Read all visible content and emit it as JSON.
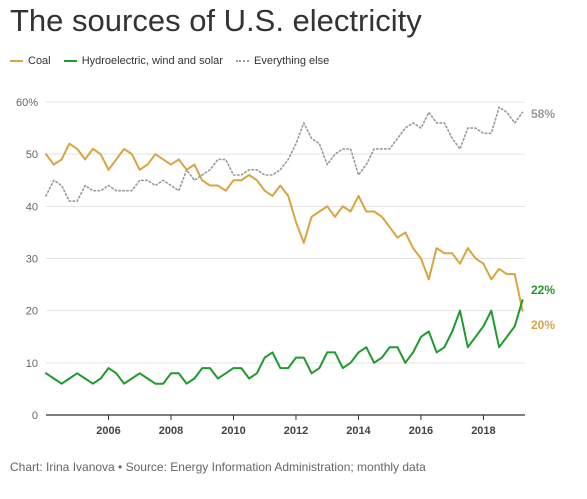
{
  "title": "The sources of U.S. electricity",
  "source": "Chart: Irina Ivanova • Source: Energy Information Administration; monthly data",
  "legend": [
    {
      "label": "Coal",
      "color": "#d9a441",
      "dash": "solid"
    },
    {
      "label": "Hydroelectric, wind and solar",
      "color": "#1f9a2c",
      "dash": "solid"
    },
    {
      "label": "Everything else",
      "color": "#999999",
      "dash": "dotted"
    }
  ],
  "chart_data": {
    "type": "line",
    "title": "The sources of U.S. electricity",
    "xlabel": "",
    "ylabel": "",
    "xlim": [
      2004.0,
      2019.33
    ],
    "ylim": [
      0,
      60
    ],
    "y_ticks": [
      0,
      10,
      20,
      30,
      40,
      50,
      60
    ],
    "y_tick_labels": [
      "0",
      "10",
      "20",
      "30",
      "40",
      "50",
      "60%"
    ],
    "x_ticks": [
      2006,
      2008,
      2010,
      2012,
      2014,
      2016,
      2018
    ],
    "x_tick_labels": [
      "2006",
      "2008",
      "2010",
      "2012",
      "2014",
      "2016",
      "2018"
    ],
    "grid": "horizontal",
    "legend_position": "top-left",
    "series": [
      {
        "name": "Coal",
        "color": "#d9a441",
        "dash": "solid",
        "end_label": "20%",
        "points": [
          [
            2004.0,
            50
          ],
          [
            2004.25,
            48
          ],
          [
            2004.5,
            49
          ],
          [
            2004.75,
            52
          ],
          [
            2005.0,
            51
          ],
          [
            2005.25,
            49
          ],
          [
            2005.5,
            51
          ],
          [
            2005.75,
            50
          ],
          [
            2006.0,
            47
          ],
          [
            2006.25,
            49
          ],
          [
            2006.5,
            51
          ],
          [
            2006.75,
            50
          ],
          [
            2007.0,
            47
          ],
          [
            2007.25,
            48
          ],
          [
            2007.5,
            50
          ],
          [
            2007.75,
            49
          ],
          [
            2008.0,
            48
          ],
          [
            2008.25,
            49
          ],
          [
            2008.5,
            47
          ],
          [
            2008.75,
            48
          ],
          [
            2009.0,
            45
          ],
          [
            2009.25,
            44
          ],
          [
            2009.5,
            44
          ],
          [
            2009.75,
            43
          ],
          [
            2010.0,
            45
          ],
          [
            2010.25,
            45
          ],
          [
            2010.5,
            46
          ],
          [
            2010.75,
            45
          ],
          [
            2011.0,
            43
          ],
          [
            2011.25,
            42
          ],
          [
            2011.5,
            44
          ],
          [
            2011.75,
            42
          ],
          [
            2012.0,
            37
          ],
          [
            2012.25,
            33
          ],
          [
            2012.5,
            38
          ],
          [
            2012.75,
            39
          ],
          [
            2013.0,
            40
          ],
          [
            2013.25,
            38
          ],
          [
            2013.5,
            40
          ],
          [
            2013.75,
            39
          ],
          [
            2014.0,
            42
          ],
          [
            2014.25,
            39
          ],
          [
            2014.5,
            39
          ],
          [
            2014.75,
            38
          ],
          [
            2015.0,
            36
          ],
          [
            2015.25,
            34
          ],
          [
            2015.5,
            35
          ],
          [
            2015.75,
            32
          ],
          [
            2016.0,
            30
          ],
          [
            2016.25,
            26
          ],
          [
            2016.5,
            32
          ],
          [
            2016.75,
            31
          ],
          [
            2017.0,
            31
          ],
          [
            2017.25,
            29
          ],
          [
            2017.5,
            32
          ],
          [
            2017.75,
            30
          ],
          [
            2018.0,
            29
          ],
          [
            2018.25,
            26
          ],
          [
            2018.5,
            28
          ],
          [
            2018.75,
            27
          ],
          [
            2019.0,
            27
          ],
          [
            2019.25,
            20
          ]
        ]
      },
      {
        "name": "Hydroelectric, wind and solar",
        "color": "#1f9a2c",
        "dash": "solid",
        "end_label": "22%",
        "points": [
          [
            2004.0,
            8
          ],
          [
            2004.25,
            7
          ],
          [
            2004.5,
            6
          ],
          [
            2004.75,
            7
          ],
          [
            2005.0,
            8
          ],
          [
            2005.25,
            7
          ],
          [
            2005.5,
            6
          ],
          [
            2005.75,
            7
          ],
          [
            2006.0,
            9
          ],
          [
            2006.25,
            8
          ],
          [
            2006.5,
            6
          ],
          [
            2006.75,
            7
          ],
          [
            2007.0,
            8
          ],
          [
            2007.25,
            7
          ],
          [
            2007.5,
            6
          ],
          [
            2007.75,
            6
          ],
          [
            2008.0,
            8
          ],
          [
            2008.25,
            8
          ],
          [
            2008.5,
            6
          ],
          [
            2008.75,
            7
          ],
          [
            2009.0,
            9
          ],
          [
            2009.25,
            9
          ],
          [
            2009.5,
            7
          ],
          [
            2009.75,
            8
          ],
          [
            2010.0,
            9
          ],
          [
            2010.25,
            9
          ],
          [
            2010.5,
            7
          ],
          [
            2010.75,
            8
          ],
          [
            2011.0,
            11
          ],
          [
            2011.25,
            12
          ],
          [
            2011.5,
            9
          ],
          [
            2011.75,
            9
          ],
          [
            2012.0,
            11
          ],
          [
            2012.25,
            11
          ],
          [
            2012.5,
            8
          ],
          [
            2012.75,
            9
          ],
          [
            2013.0,
            12
          ],
          [
            2013.25,
            12
          ],
          [
            2013.5,
            9
          ],
          [
            2013.75,
            10
          ],
          [
            2014.0,
            12
          ],
          [
            2014.25,
            13
          ],
          [
            2014.5,
            10
          ],
          [
            2014.75,
            11
          ],
          [
            2015.0,
            13
          ],
          [
            2015.25,
            13
          ],
          [
            2015.5,
            10
          ],
          [
            2015.75,
            12
          ],
          [
            2016.0,
            15
          ],
          [
            2016.25,
            16
          ],
          [
            2016.5,
            12
          ],
          [
            2016.75,
            13
          ],
          [
            2017.0,
            16
          ],
          [
            2017.25,
            20
          ],
          [
            2017.5,
            13
          ],
          [
            2017.75,
            15
          ],
          [
            2018.0,
            17
          ],
          [
            2018.25,
            20
          ],
          [
            2018.5,
            13
          ],
          [
            2018.75,
            15
          ],
          [
            2019.0,
            17
          ],
          [
            2019.25,
            22
          ]
        ]
      },
      {
        "name": "Everything else",
        "color": "#999999",
        "dash": "dotted",
        "end_label": "58%",
        "points": [
          [
            2004.0,
            42
          ],
          [
            2004.25,
            45
          ],
          [
            2004.5,
            44
          ],
          [
            2004.75,
            41
          ],
          [
            2005.0,
            41
          ],
          [
            2005.25,
            44
          ],
          [
            2005.5,
            43
          ],
          [
            2005.75,
            43
          ],
          [
            2006.0,
            44
          ],
          [
            2006.25,
            43
          ],
          [
            2006.5,
            43
          ],
          [
            2006.75,
            43
          ],
          [
            2007.0,
            45
          ],
          [
            2007.25,
            45
          ],
          [
            2007.5,
            44
          ],
          [
            2007.75,
            45
          ],
          [
            2008.0,
            44
          ],
          [
            2008.25,
            43
          ],
          [
            2008.5,
            47
          ],
          [
            2008.75,
            45
          ],
          [
            2009.0,
            46
          ],
          [
            2009.25,
            47
          ],
          [
            2009.5,
            49
          ],
          [
            2009.75,
            49
          ],
          [
            2010.0,
            46
          ],
          [
            2010.25,
            46
          ],
          [
            2010.5,
            47
          ],
          [
            2010.75,
            47
          ],
          [
            2011.0,
            46
          ],
          [
            2011.25,
            46
          ],
          [
            2011.5,
            47
          ],
          [
            2011.75,
            49
          ],
          [
            2012.0,
            52
          ],
          [
            2012.25,
            56
          ],
          [
            2012.5,
            53
          ],
          [
            2012.75,
            52
          ],
          [
            2013.0,
            48
          ],
          [
            2013.25,
            50
          ],
          [
            2013.5,
            51
          ],
          [
            2013.75,
            51
          ],
          [
            2014.0,
            46
          ],
          [
            2014.25,
            48
          ],
          [
            2014.5,
            51
          ],
          [
            2014.75,
            51
          ],
          [
            2015.0,
            51
          ],
          [
            2015.25,
            53
          ],
          [
            2015.5,
            55
          ],
          [
            2015.75,
            56
          ],
          [
            2016.0,
            55
          ],
          [
            2016.25,
            58
          ],
          [
            2016.5,
            56
          ],
          [
            2016.75,
            56
          ],
          [
            2017.0,
            53
          ],
          [
            2017.25,
            51
          ],
          [
            2017.5,
            55
          ],
          [
            2017.75,
            55
          ],
          [
            2018.0,
            54
          ],
          [
            2018.25,
            54
          ],
          [
            2018.5,
            59
          ],
          [
            2018.75,
            58
          ],
          [
            2019.0,
            56
          ],
          [
            2019.25,
            58
          ]
        ]
      }
    ]
  }
}
